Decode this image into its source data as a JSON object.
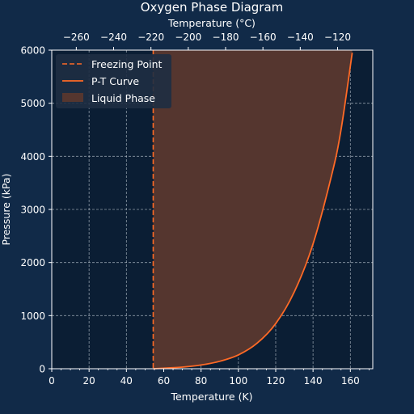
{
  "colors": {
    "figure_bg": "#112a48",
    "axes_bg": "#0b1e34",
    "accent": "#ff6a26",
    "liquid_fill": "#55362f",
    "grid": "#b8c2cc",
    "text": "#ffffff",
    "legend_bg": "#1e2e42"
  },
  "chart_data": {
    "type": "line",
    "title": "Oxygen Phase Diagram",
    "xlabel": "Temperature (K)",
    "ylabel": "Pressure (kPa)",
    "x2label": "Temperature (°C)",
    "xlim": [
      0,
      172
    ],
    "ylim": [
      0,
      6000
    ],
    "xticks": [
      0,
      20,
      40,
      60,
      80,
      100,
      120,
      140,
      160
    ],
    "yticks": [
      0,
      1000,
      2000,
      3000,
      4000,
      5000,
      6000
    ],
    "x2ticks": [
      -260,
      -240,
      -220,
      -200,
      -180,
      -160,
      -140,
      -120
    ],
    "x2ticks_display": [
      "−260",
      "−240",
      "−220",
      "−200",
      "−180",
      "−160",
      "−140",
      "−120"
    ],
    "grid": true,
    "legend_position": "top-left",
    "freezing_point": {
      "name": "Freezing Point",
      "x": 54.36,
      "style": "dashed"
    },
    "pt_curve": {
      "name": "P-T Curve",
      "x": [
        54.36,
        60,
        70,
        80,
        90,
        100,
        110,
        120,
        130,
        140,
        150,
        155,
        161
      ],
      "y": [
        0,
        10,
        30,
        70,
        140,
        260,
        480,
        850,
        1450,
        2350,
        3650,
        4500,
        5950
      ]
    },
    "liquid_region": {
      "name": "Liquid Phase",
      "x_start": 54.36,
      "x_end": 161
    },
    "legend": [
      {
        "label": "Freezing Point",
        "kind": "dashed-line"
      },
      {
        "label": "P-T Curve",
        "kind": "line"
      },
      {
        "label": "Liquid Phase",
        "kind": "patch"
      }
    ]
  }
}
